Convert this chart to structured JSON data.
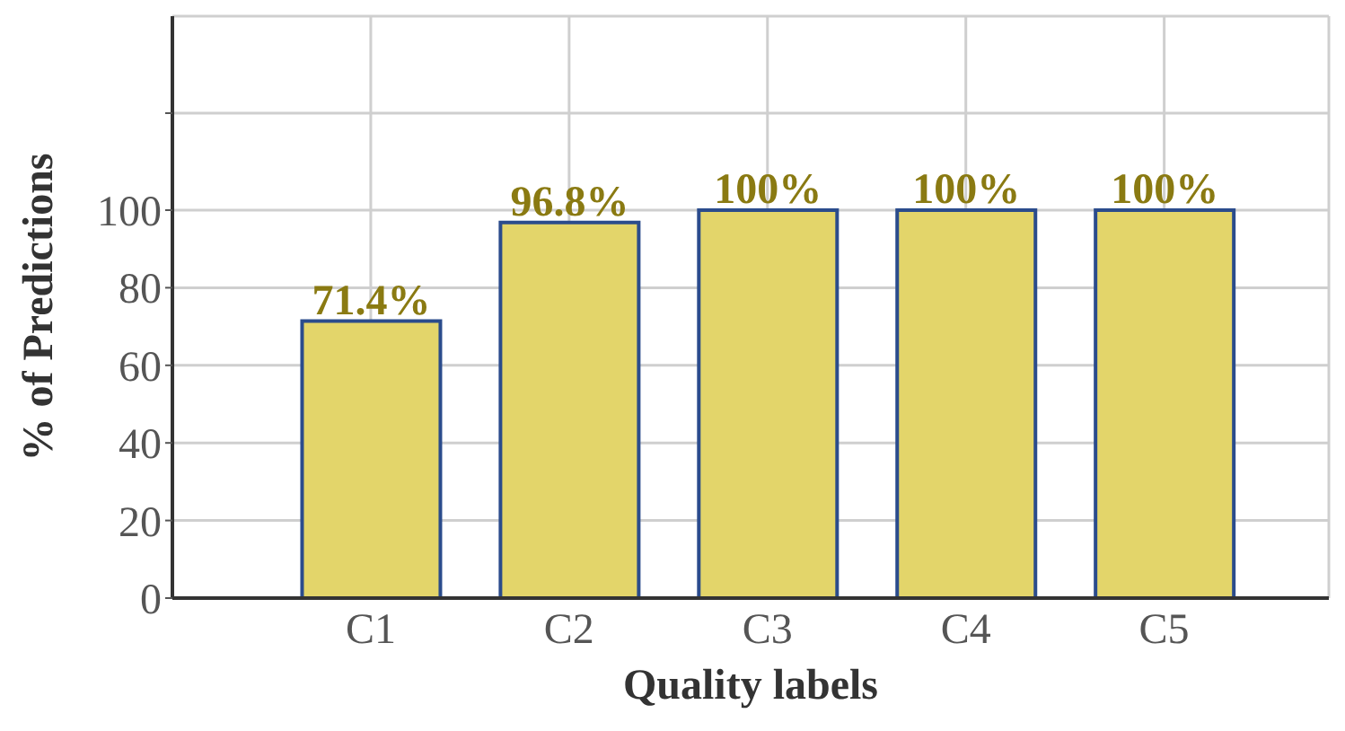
{
  "chart_data": {
    "type": "bar",
    "xlabel": "Quality labels",
    "ylabel": "% of Predictions",
    "categories": [
      "C1",
      "C2",
      "C3",
      "C4",
      "C5"
    ],
    "series": [
      {
        "color": "#e3d56a",
        "values": [
          71.4,
          96.8,
          100,
          100,
          100
        ]
      }
    ],
    "value_labels": [
      "71.4%",
      "96.8%",
      "100%",
      "100%",
      "100%"
    ],
    "ylim": [
      0,
      150
    ],
    "yticks": [
      0,
      20,
      40,
      60,
      80,
      100,
      {
        "value": 125,
        "label": null
      }
    ],
    "grid": true
  }
}
